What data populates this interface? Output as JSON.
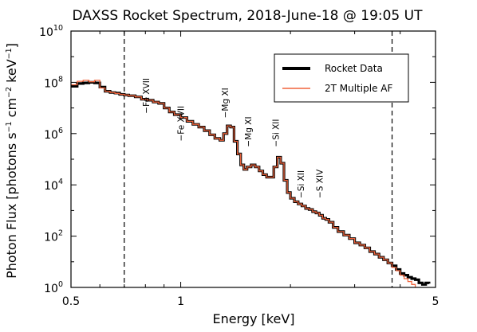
{
  "chart_data": {
    "type": "line",
    "title": "DAXSS Rocket Spectrum, 2018-June-18 @ 19:05 UT",
    "xlabel": "Energy [keV]",
    "ylabel": "Photon Flux [photons s⁻¹ cm⁻² keV⁻¹]",
    "ylabel_parts": {
      "base": "Photon Flux [photons s",
      "e1": "−1",
      "mid1": " cm",
      "e2": "−2",
      "mid2": " keV",
      "e3": "−1",
      "end": "]"
    },
    "x_scale": "log",
    "y_scale": "log",
    "xlim": [
      0.5,
      5
    ],
    "ylim": [
      1,
      10000000000
    ],
    "x_ticks": [
      {
        "value": 0.5,
        "label": "0.5"
      },
      {
        "value": 1,
        "label": "1"
      },
      {
        "value": 5,
        "label": "5"
      }
    ],
    "y_ticks": [
      {
        "value": 1,
        "base": "10",
        "exp": "0"
      },
      {
        "value": 100,
        "base": "10",
        "exp": "2"
      },
      {
        "value": 10000,
        "base": "10",
        "exp": "4"
      },
      {
        "value": 1000000,
        "base": "10",
        "exp": "6"
      },
      {
        "value": 100000000,
        "base": "10",
        "exp": "8"
      },
      {
        "value": 10000000000,
        "base": "10",
        "exp": "10"
      }
    ],
    "vlines": [
      0.7,
      3.8
    ],
    "legend": {
      "position": "top-right",
      "entries": [
        {
          "label": "Rocket Data",
          "color": "#000000"
        },
        {
          "label": "2T Multiple AF",
          "color": "#f0643c"
        }
      ]
    },
    "annotations": [
      {
        "text": "−Fe XVII",
        "x": 0.82,
        "y": 6000000
      },
      {
        "text": "−Fe XVII",
        "x": 1.02,
        "y": 500000
      },
      {
        "text": "−Mg XI",
        "x": 1.35,
        "y": 4000000
      },
      {
        "text": "−Mg XI",
        "x": 1.56,
        "y": 300000
      },
      {
        "text": "−Si XII",
        "x": 1.86,
        "y": 300000
      },
      {
        "text": "−Si XII",
        "x": 2.18,
        "y": 3000
      },
      {
        "text": "−S XIV",
        "x": 2.45,
        "y": 3000
      }
    ],
    "series": [
      {
        "name": "Rocket Data",
        "color": "#000000",
        "points": [
          [
            0.5,
            70000000
          ],
          [
            0.52,
            90000000
          ],
          [
            0.54,
            95000000
          ],
          [
            0.56,
            100000000
          ],
          [
            0.58,
            95000000
          ],
          [
            0.6,
            65000000
          ],
          [
            0.62,
            45000000
          ],
          [
            0.64,
            40000000
          ],
          [
            0.66,
            38000000
          ],
          [
            0.68,
            34000000
          ],
          [
            0.7,
            32000000
          ],
          [
            0.72,
            30000000
          ],
          [
            0.75,
            27000000
          ],
          [
            0.78,
            22000000
          ],
          [
            0.81,
            20000000
          ],
          [
            0.84,
            17000000
          ],
          [
            0.87,
            15000000
          ],
          [
            0.9,
            10000000
          ],
          [
            0.93,
            7000000
          ],
          [
            0.96,
            5500000
          ],
          [
            1.0,
            4200000
          ],
          [
            1.04,
            3000000
          ],
          [
            1.08,
            2300000
          ],
          [
            1.12,
            1800000
          ],
          [
            1.16,
            1300000
          ],
          [
            1.2,
            900000
          ],
          [
            1.24,
            650000
          ],
          [
            1.28,
            550000
          ],
          [
            1.31,
            1000000
          ],
          [
            1.34,
            2000000
          ],
          [
            1.37,
            1800000
          ],
          [
            1.4,
            500000
          ],
          [
            1.43,
            160000
          ],
          [
            1.46,
            60000
          ],
          [
            1.49,
            40000
          ],
          [
            1.52,
            50000
          ],
          [
            1.56,
            60000
          ],
          [
            1.6,
            50000
          ],
          [
            1.64,
            35000
          ],
          [
            1.68,
            25000
          ],
          [
            1.72,
            20000
          ],
          [
            1.76,
            20000
          ],
          [
            1.8,
            50000
          ],
          [
            1.84,
            120000
          ],
          [
            1.88,
            70000
          ],
          [
            1.92,
            15000
          ],
          [
            1.96,
            5000
          ],
          [
            2.0,
            3000
          ],
          [
            2.05,
            2200
          ],
          [
            2.1,
            1800
          ],
          [
            2.15,
            1500
          ],
          [
            2.2,
            1200
          ],
          [
            2.25,
            1100
          ],
          [
            2.3,
            900
          ],
          [
            2.35,
            800
          ],
          [
            2.4,
            650
          ],
          [
            2.45,
            500
          ],
          [
            2.5,
            450
          ],
          [
            2.55,
            350
          ],
          [
            2.62,
            220
          ],
          [
            2.7,
            150
          ],
          [
            2.8,
            110
          ],
          [
            2.9,
            80
          ],
          [
            3.0,
            55
          ],
          [
            3.1,
            45
          ],
          [
            3.2,
            35
          ],
          [
            3.3,
            25
          ],
          [
            3.4,
            20
          ],
          [
            3.5,
            15
          ],
          [
            3.6,
            12
          ],
          [
            3.7,
            9
          ],
          [
            3.8,
            7
          ],
          [
            3.9,
            5
          ],
          [
            4.0,
            3.5
          ],
          [
            4.1,
            3
          ],
          [
            4.2,
            2.5
          ],
          [
            4.3,
            2.2
          ],
          [
            4.4,
            2
          ],
          [
            4.5,
            1.5
          ],
          [
            4.6,
            1.3
          ],
          [
            4.7,
            1.5
          ],
          [
            4.8,
            1.4
          ]
        ]
      },
      {
        "name": "2T Multiple AF",
        "color": "#f0643c",
        "points": [
          [
            0.5,
            80000000
          ],
          [
            0.52,
            110000000
          ],
          [
            0.54,
            120000000
          ],
          [
            0.56,
            105000000
          ],
          [
            0.58,
            120000000
          ],
          [
            0.6,
            60000000
          ],
          [
            0.62,
            45000000
          ],
          [
            0.64,
            40000000
          ],
          [
            0.66,
            37000000
          ],
          [
            0.68,
            34000000
          ],
          [
            0.7,
            32000000
          ],
          [
            0.72,
            30000000
          ],
          [
            0.75,
            27000000
          ],
          [
            0.78,
            22000000
          ],
          [
            0.81,
            20000000
          ],
          [
            0.84,
            17000000
          ],
          [
            0.87,
            15000000
          ],
          [
            0.9,
            10000000
          ],
          [
            0.93,
            7000000
          ],
          [
            0.96,
            5500000
          ],
          [
            1.0,
            4200000
          ],
          [
            1.04,
            3000000
          ],
          [
            1.08,
            2300000
          ],
          [
            1.12,
            1800000
          ],
          [
            1.16,
            1300000
          ],
          [
            1.2,
            900000
          ],
          [
            1.24,
            650000
          ],
          [
            1.28,
            550000
          ],
          [
            1.31,
            1000000
          ],
          [
            1.34,
            2000000
          ],
          [
            1.37,
            1800000
          ],
          [
            1.4,
            500000
          ],
          [
            1.43,
            160000
          ],
          [
            1.46,
            60000
          ],
          [
            1.49,
            40000
          ],
          [
            1.52,
            50000
          ],
          [
            1.56,
            60000
          ],
          [
            1.6,
            50000
          ],
          [
            1.64,
            35000
          ],
          [
            1.68,
            25000
          ],
          [
            1.72,
            20000
          ],
          [
            1.76,
            20000
          ],
          [
            1.8,
            50000
          ],
          [
            1.84,
            120000
          ],
          [
            1.88,
            70000
          ],
          [
            1.92,
            15000
          ],
          [
            1.96,
            5000
          ],
          [
            2.0,
            3000
          ],
          [
            2.05,
            2200
          ],
          [
            2.1,
            1800
          ],
          [
            2.15,
            1500
          ],
          [
            2.2,
            1200
          ],
          [
            2.25,
            1100
          ],
          [
            2.3,
            900
          ],
          [
            2.35,
            800
          ],
          [
            2.4,
            650
          ],
          [
            2.45,
            500
          ],
          [
            2.5,
            450
          ],
          [
            2.55,
            350
          ],
          [
            2.62,
            220
          ],
          [
            2.7,
            150
          ],
          [
            2.8,
            110
          ],
          [
            2.9,
            80
          ],
          [
            3.0,
            55
          ],
          [
            3.1,
            45
          ],
          [
            3.2,
            35
          ],
          [
            3.3,
            25
          ],
          [
            3.4,
            20
          ],
          [
            3.5,
            15
          ],
          [
            3.6,
            12
          ],
          [
            3.7,
            9
          ],
          [
            3.8,
            6
          ],
          [
            3.9,
            4.5
          ],
          [
            4.0,
            3
          ],
          [
            4.1,
            2.2
          ],
          [
            4.2,
            1.7
          ],
          [
            4.3,
            1.3
          ],
          [
            4.4,
            1
          ]
        ]
      }
    ]
  }
}
